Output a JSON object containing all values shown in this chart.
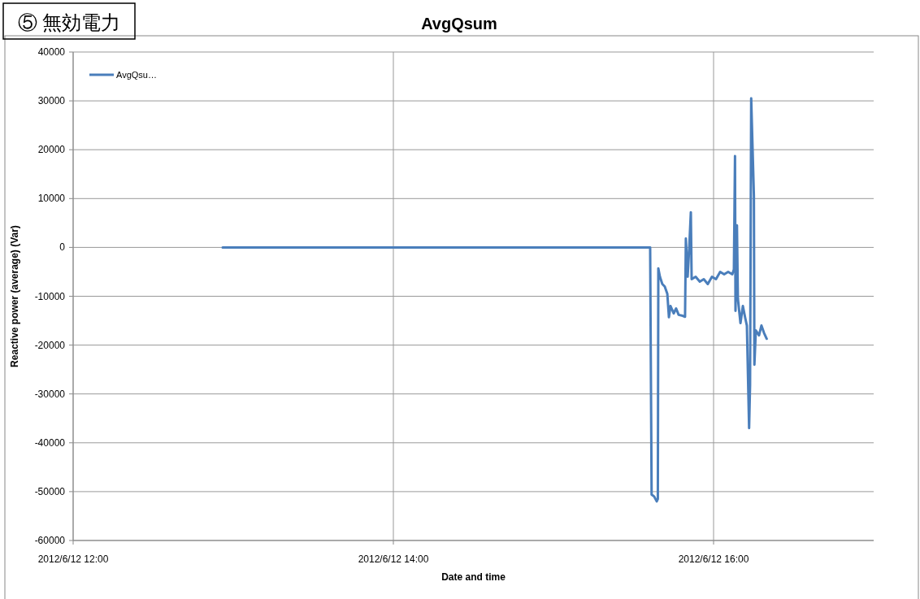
{
  "chart_data": {
    "type": "line",
    "title": "AvgQsum",
    "xlabel": "Date and time",
    "ylabel": "Reactive power (average) (Var)",
    "annotations": [
      "⑤ 無効電力"
    ],
    "xlim": [
      "2012-06-12T12:00",
      "2012-06-12T17:00"
    ],
    "xticks": [
      {
        "value": "2012-06-12T12:00",
        "label": "2012/6/12 12:00"
      },
      {
        "value": "2012-06-12T14:00",
        "label": "2012/6/12 14:00"
      },
      {
        "value": "2012-06-12T16:00",
        "label": "2012/6/12 16:00"
      }
    ],
    "ylim": [
      -60000,
      40000
    ],
    "yticks": [
      -60000,
      -50000,
      -40000,
      -30000,
      -20000,
      -10000,
      0,
      10000,
      20000,
      30000,
      40000
    ],
    "grid": true,
    "legend": "top left",
    "marker": "none",
    "line_style": "solid",
    "x": [
      "2012-06-12T12:56:02",
      "2012-06-12T15:36:14",
      "2012-06-12T15:36:47",
      "2012-06-12T15:37:44",
      "2012-06-12T15:38:42",
      "2012-06-12T15:39:07",
      "2012-06-12T15:39:18",
      "2012-06-12T15:39:54",
      "2012-06-12T15:40:48",
      "2012-06-12T15:41:42",
      "2012-06-12T15:42:40",
      "2012-06-12T15:43:16",
      "2012-06-12T15:43:52",
      "2012-06-12T15:45:04",
      "2012-06-12T15:45:58",
      "2012-06-12T15:46:55",
      "2012-06-12T15:48:25",
      "2012-06-12T15:49:19",
      "2012-06-12T15:49:37",
      "2012-06-12T15:50:17",
      "2012-06-12T15:50:53",
      "2012-06-12T15:51:29",
      "2012-06-12T15:51:47",
      "2012-06-12T15:53:17",
      "2012-06-12T15:54:50",
      "2012-06-12T15:56:20",
      "2012-06-12T15:57:50",
      "2012-06-12T15:59:24",
      "2012-06-12T16:00:54",
      "2012-06-12T16:02:28",
      "2012-06-12T16:03:58",
      "2012-06-12T16:05:28",
      "2012-06-12T16:07:01",
      "2012-06-12T16:07:37",
      "2012-06-12T16:08:02",
      "2012-06-12T16:08:13",
      "2012-06-12T16:08:46",
      "2012-06-12T16:09:07",
      "2012-06-12T16:10:05",
      "2012-06-12T16:10:59",
      "2012-06-12T16:11:53",
      "2012-06-12T16:12:29",
      "2012-06-12T16:13:19",
      "2012-06-12T16:13:41",
      "2012-06-12T16:14:06",
      "2012-06-12T16:14:38",
      "2012-06-12T16:15:07",
      "2012-06-12T16:15:18",
      "2012-06-12T16:15:50",
      "2012-06-12T16:17:02",
      "2012-06-12T16:17:56",
      "2012-06-12T16:18:54",
      "2012-06-12T16:19:55"
    ],
    "series": [
      {
        "name": "AvgQsu…",
        "color": "#4a7ebb",
        "values": [
          0,
          0,
          -50600,
          -51000,
          -52000,
          -51500,
          -4300,
          -6000,
          -7500,
          -8000,
          -9500,
          -14300,
          -12000,
          -13500,
          -12500,
          -13800,
          -14000,
          -14200,
          1800,
          -6000,
          0,
          7200,
          -6500,
          -6000,
          -7000,
          -6500,
          -7500,
          -6000,
          -6500,
          -5000,
          -5500,
          -5000,
          -5500,
          -4500,
          18700,
          -13000,
          4500,
          -10500,
          -15500,
          -12000,
          -14500,
          -16000,
          -37000,
          -28000,
          30500,
          20000,
          10500,
          -24000,
          -17000,
          -18000,
          -16000,
          -17500,
          -18700
        ]
      }
    ]
  }
}
